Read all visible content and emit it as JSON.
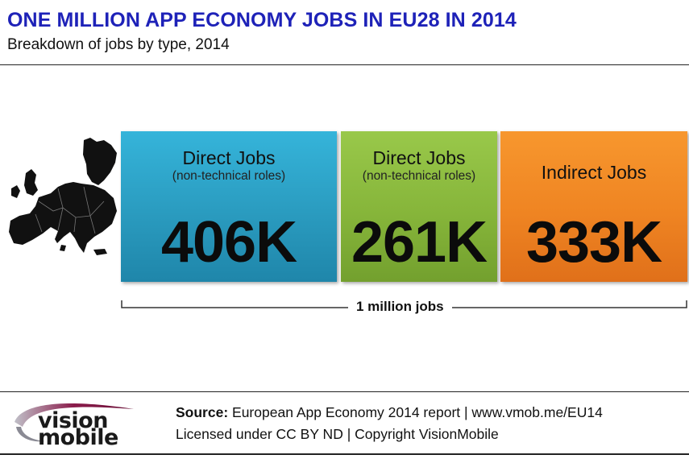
{
  "header": {
    "title": "ONE MILLION APP ECONOMY JOBS IN EU28 IN 2014",
    "subtitle": "Breakdown of jobs by type, 2014"
  },
  "cards": [
    {
      "label": "Direct Jobs",
      "sublabel": "(non-technical roles)",
      "value": "406K",
      "color": "#2a9bbf"
    },
    {
      "label": "Direct Jobs",
      "sublabel": "(non-technical roles)",
      "value": "261K",
      "color": "#86b53a"
    },
    {
      "label": "Indirect Jobs",
      "sublabel": "",
      "value": "333K",
      "color": "#ef8422"
    }
  ],
  "total_label": "1 million jobs",
  "chart_data": {
    "type": "bar",
    "title": "ONE MILLION APP ECONOMY JOBS IN EU28 IN 2014",
    "subtitle": "Breakdown of jobs by type, 2014",
    "categories": [
      "Direct Jobs (non-technical roles)",
      "Direct Jobs (non-technical roles)",
      "Indirect Jobs"
    ],
    "values": [
      406000,
      261000,
      333000
    ],
    "value_labels": [
      "406K",
      "261K",
      "333K"
    ],
    "total": "1 million jobs",
    "colors": [
      "#2a9bbf",
      "#86b53a",
      "#ef8422"
    ]
  },
  "logo": {
    "line1": "vision",
    "line2": "mobile",
    "accent": "#8a1a4a"
  },
  "footer": {
    "source_label": "Source:",
    "source_text": "European App Economy 2014 report | www.vmob.me/EU14",
    "license_text": "Licensed under CC BY ND | Copyright VisionMobile"
  }
}
